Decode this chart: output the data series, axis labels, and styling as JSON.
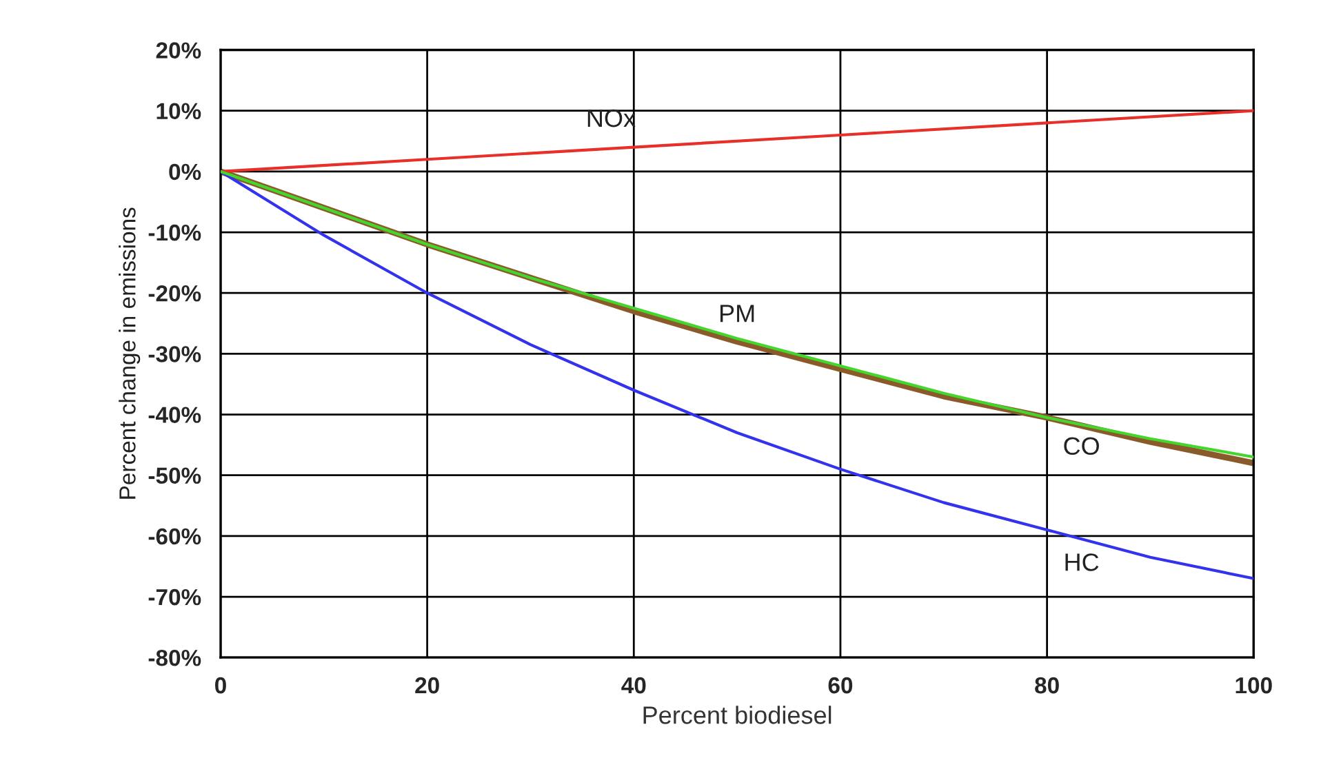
{
  "chart_data": {
    "type": "line",
    "xlabel": "Percent biodiesel",
    "ylabel": "Percent change in emissions",
    "series": [
      {
        "name": "NOx",
        "color": "#e8302a",
        "x": [
          0,
          20,
          40,
          60,
          80,
          100
        ],
        "values": [
          0,
          2,
          4,
          6,
          8,
          10
        ]
      },
      {
        "name": "PM",
        "color": "#44d62c",
        "x": [
          0,
          10,
          20,
          30,
          40,
          50,
          60,
          70,
          80,
          90,
          100
        ],
        "values": [
          0,
          -6,
          -12,
          -17.5,
          -22.5,
          -27.5,
          -32,
          -36.5,
          -40.5,
          -44,
          -47
        ]
      },
      {
        "name": "CO",
        "color": "#8b5a2b",
        "x": [
          0,
          10,
          20,
          30,
          40,
          50,
          60,
          70,
          80,
          90,
          100
        ],
        "values": [
          0,
          -6,
          -12,
          -17.5,
          -23,
          -28,
          -32.5,
          -37,
          -40.5,
          -44.5,
          -48
        ]
      },
      {
        "name": "HC",
        "color": "#3333ee",
        "x": [
          0,
          10,
          20,
          30,
          40,
          50,
          60,
          70,
          80,
          90,
          100
        ],
        "values": [
          0,
          -10.5,
          -20,
          -28.5,
          -36,
          -43,
          -49,
          -54.5,
          -59,
          -63.5,
          -67
        ]
      }
    ],
    "xlim": [
      0,
      100
    ],
    "xticks": [
      0,
      20,
      40,
      60,
      80,
      100
    ],
    "ylim": [
      -80,
      20
    ],
    "yticks": [
      {
        "value": -80,
        "label": "-80%"
      },
      {
        "value": -70,
        "label": "-70%"
      },
      {
        "value": -60,
        "label": "-60%"
      },
      {
        "value": -50,
        "label": "-50%"
      },
      {
        "value": -40,
        "label": "-40%"
      },
      {
        "value": -30,
        "label": "-30%"
      },
      {
        "value": -20,
        "label": "-20%"
      },
      {
        "value": -10,
        "label": "-10%"
      },
      {
        "value": 0,
        "label": "0%"
      },
      {
        "value": 10,
        "label": "10%"
      },
      {
        "value": 20,
        "label": "20%"
      }
    ],
    "grid": true,
    "legend": false,
    "marker": "none",
    "line_style": "solid"
  }
}
